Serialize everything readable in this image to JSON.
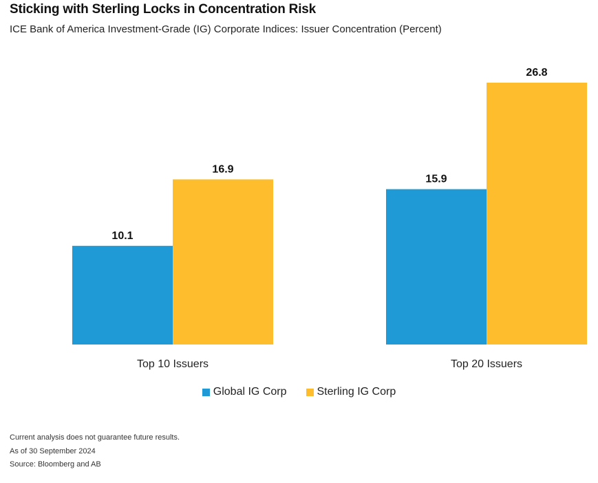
{
  "title": "Sticking with Sterling Locks in Concentration Risk",
  "subtitle": "ICE Bank of America Investment-Grade (IG) Corporate Indices: Issuer Concentration (Percent)",
  "colors": {
    "global": "#1f9ad6",
    "sterling": "#fdbd2c"
  },
  "chart_data": {
    "type": "bar",
    "categories": [
      "Top 10 Issuers",
      "Top 20 Issuers"
    ],
    "series": [
      {
        "name": "Global IG Corp",
        "values": [
          10.1,
          15.9
        ],
        "labels": [
          "10.1",
          "15.9"
        ]
      },
      {
        "name": "Sterling IG Corp",
        "values": [
          16.9,
          26.8
        ],
        "labels": [
          "16.9",
          "26.8"
        ]
      }
    ],
    "title": "Sticking with Sterling Locks in Concentration Risk",
    "subtitle": "ICE Bank of America Investment-Grade (IG) Corporate Indices: Issuer Concentration (Percent)",
    "xlabel": "",
    "ylabel": "",
    "ylim": [
      0,
      26.8
    ],
    "grid": false,
    "legend": "bottom-center"
  },
  "notes": [
    "Current analysis does not guarantee future results.",
    "As of 30 September 2024",
    "Source: Bloomberg and AB"
  ]
}
